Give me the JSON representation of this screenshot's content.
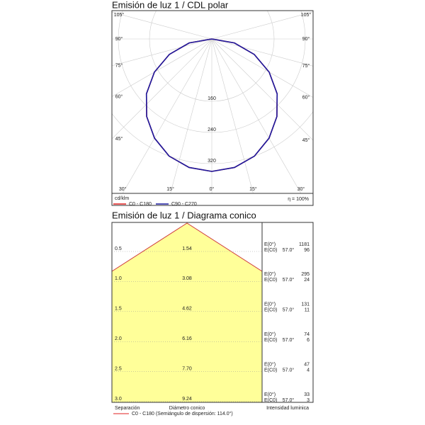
{
  "chart_data": [
    {
      "type": "polar",
      "title": "Emisión de luz 1 / CDL polar",
      "unit_label": "cd/klm",
      "efficiency": "η = 100%",
      "angles": [
        -90,
        -80,
        -70,
        -60,
        -50,
        -40,
        -30,
        -20,
        -10,
        0,
        10,
        20,
        30,
        40,
        50,
        60,
        70,
        80,
        90
      ],
      "series": [
        {
          "name": "C0 - C180",
          "color": "#e02020",
          "values": [
            0,
            59,
            116,
            170,
            219,
            260,
            294,
            320,
            335,
            340,
            335,
            320,
            294,
            260,
            219,
            170,
            116,
            59,
            0
          ]
        },
        {
          "name": "C90 - C270",
          "color": "#1a1aa0",
          "values": [
            0,
            59,
            116,
            170,
            219,
            260,
            294,
            320,
            335,
            340,
            335,
            320,
            294,
            260,
            219,
            170,
            116,
            59,
            0
          ]
        }
      ],
      "rlim": [
        0,
        400
      ],
      "rticks": [
        160,
        240,
        320
      ],
      "angle_ticks": [
        {
          "value": 0,
          "label": "0°"
        },
        {
          "value": 15,
          "label": "15°"
        },
        {
          "value": 30,
          "label": "30°"
        },
        {
          "value": 45,
          "label": "45°"
        },
        {
          "value": 60,
          "label": "60°"
        },
        {
          "value": 75,
          "label": "75°"
        },
        {
          "value": 90,
          "label": "90°"
        },
        {
          "value": 105,
          "label": "105°"
        }
      ],
      "grid": true
    },
    {
      "type": "cone",
      "title": "Emisión de luz 1 / Diagrama conico",
      "rows": [
        {
          "separation": "0.5",
          "diameter": "1.54",
          "e0": "1181",
          "ec0": "96"
        },
        {
          "separation": "1.0",
          "diameter": "3.08",
          "e0": "295",
          "ec0": "24"
        },
        {
          "separation": "1.5",
          "diameter": "4.62",
          "e0": "131",
          "ec0": "11"
        },
        {
          "separation": "2.0",
          "diameter": "6.16",
          "e0": "74",
          "ec0": "6"
        },
        {
          "separation": "2.5",
          "diameter": "7.70",
          "e0": "47",
          "ec0": "4"
        },
        {
          "separation": "3.0",
          "diameter": "9.24",
          "e0": "33",
          "ec0": "3"
        }
      ],
      "e_labels": [
        "E(0°)",
        "E(C0)"
      ],
      "beam_angle": "57.0°",
      "separation_label": "Separación",
      "diameter_label": "Diámetro conico",
      "intensity_label": "Intensidad luminica",
      "legend": "C0 - C180 (Semiángulo de dispersión: 114.0°)"
    }
  ]
}
